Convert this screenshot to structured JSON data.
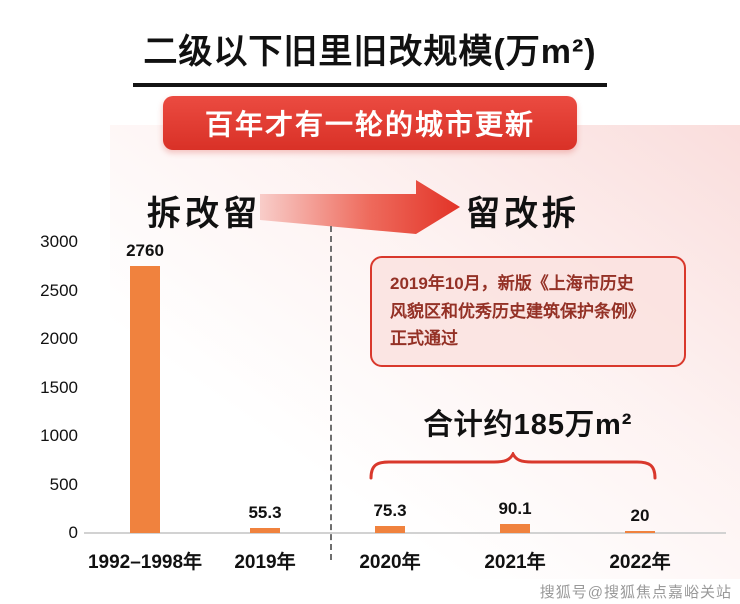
{
  "page": {
    "title": "二级以下旧里旧改规模(万m²)",
    "banner": "百年才有一轮的城市更新",
    "stage_left": "拆改留",
    "stage_right": "留改拆",
    "annotation_text": "2019年10月，新版《上海市历史\n风貌区和优秀历史建筑保护条例》\n正式通过",
    "total_label": "合计约185万m²",
    "watermark": "搜狐号@搜狐焦点嘉峪关站"
  },
  "colors": {
    "bar": "#F0823E",
    "accent_red": "#D9382C",
    "banner_red": "#E2362C",
    "annotation_bg": "#FAE2DF",
    "annotation_text": "#943126"
  },
  "chart_data": {
    "type": "bar",
    "title": "二级以下旧里旧改规模(万m²)",
    "categories": [
      "1992–1998年",
      "2019年",
      "2020年",
      "2021年",
      "2022年"
    ],
    "values": [
      2760,
      55.3,
      75.3,
      90.1,
      20
    ],
    "value_labels": [
      "2760",
      "55.3",
      "75.3",
      "90.1",
      "20"
    ],
    "yticks": [
      0,
      500,
      1000,
      1500,
      2000,
      2500,
      3000
    ],
    "ylim": [
      0,
      3200
    ],
    "xlabel": "",
    "ylabel": "",
    "grid": false,
    "legend": false,
    "groups": [
      {
        "label": "拆改留",
        "categories": [
          "1992–1998年",
          "2019年"
        ]
      },
      {
        "label": "留改拆",
        "categories": [
          "2020年",
          "2021年",
          "2022年"
        ],
        "total_note": "合计约185万m²"
      }
    ]
  }
}
